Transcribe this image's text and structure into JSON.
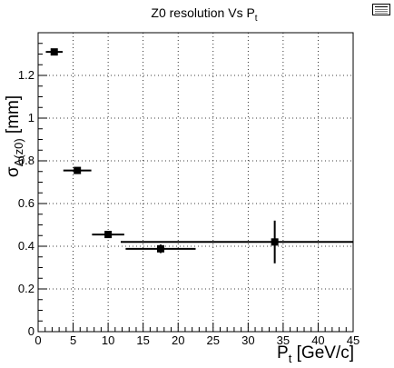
{
  "chart_data": {
    "type": "scatter",
    "title": "Z0 resolution Vs P",
    "title_sub": "t",
    "xlabel": "P",
    "xlabel_sub": "t",
    "xlabel_unit": " [GeV/c]",
    "ylabel": "σ",
    "ylabel_sub": "Δ(z0)",
    "ylabel_unit": " [mm]",
    "xlim": [
      0,
      45
    ],
    "ylim": [
      0,
      1.4
    ],
    "grid": true,
    "xticks": [
      0,
      5,
      10,
      15,
      20,
      25,
      30,
      35,
      40,
      45
    ],
    "yticks": [
      0,
      0.2,
      0.4,
      0.6,
      0.8,
      1,
      1.2
    ],
    "points": [
      {
        "x": 2.3,
        "y": 1.31,
        "xerr": 1.2,
        "yerr": 0.01
      },
      {
        "x": 5.6,
        "y": 0.755,
        "xerr": 2.0,
        "yerr": 0.01
      },
      {
        "x": 10.0,
        "y": 0.455,
        "xerr": 2.3,
        "yerr": 0.01
      },
      {
        "x": 17.5,
        "y": 0.388,
        "xerr": 5.0,
        "yerr": 0.02
      },
      {
        "x": 33.8,
        "y": 0.42,
        "xerr": 22.0,
        "yerr": 0.1
      }
    ],
    "marker_color": "#000000"
  }
}
